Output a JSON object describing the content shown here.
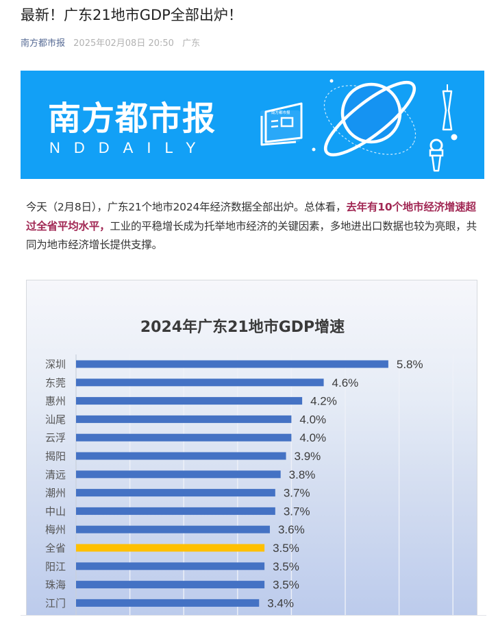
{
  "article": {
    "title": "最新！广东21地市GDP全部出炉！",
    "source": "南方都市报",
    "datetime": "2025年02月08日 20:50",
    "location": "广东",
    "paragraph": {
      "part1": "今天（2月8日），广东21个地市2024年经济数据全部出炉。总体看，",
      "highlight": "去年有10个地市经济增速超过全省平均水平，",
      "part2": "工业的平稳增长成为托举地市经济的关键因素，多地进出口数据也较为亮眼，共同为地市经济增长提供支撑。"
    }
  },
  "banner": {
    "brand_cn": "南方都市报",
    "brand_en": "NDDAILY",
    "newspaper_icon_text": "南方都市报",
    "background_color": "#12a0f6"
  },
  "colors": {
    "bar_default": "#4472c4",
    "bar_highlight": "#ffc000",
    "highlight_text": "#a12854",
    "source_link": "#576b95"
  },
  "chart_data": {
    "type": "bar",
    "orientation": "horizontal",
    "title": "2024年广东21地市GDP增速",
    "xlabel": "",
    "ylabel": "",
    "xlim": [
      0,
      7
    ],
    "grid": "vertical",
    "value_suffix": "%",
    "categories": [
      "深圳",
      "东莞",
      "惠州",
      "汕尾",
      "云浮",
      "揭阳",
      "清远",
      "潮州",
      "中山",
      "梅州",
      "全省",
      "阳江",
      "珠海",
      "江门"
    ],
    "values": [
      5.8,
      4.6,
      4.2,
      4.0,
      4.0,
      3.9,
      3.8,
      3.7,
      3.7,
      3.6,
      3.5,
      3.5,
      3.5,
      3.4
    ],
    "labels": [
      "5.8%",
      "4.6%",
      "4.2%",
      "4.0%",
      "4.0%",
      "3.9%",
      "3.8%",
      "3.7%",
      "3.7%",
      "3.6%",
      "3.5%",
      "3.5%",
      "3.5%",
      "3.4%"
    ],
    "highlight_category": "全省"
  }
}
